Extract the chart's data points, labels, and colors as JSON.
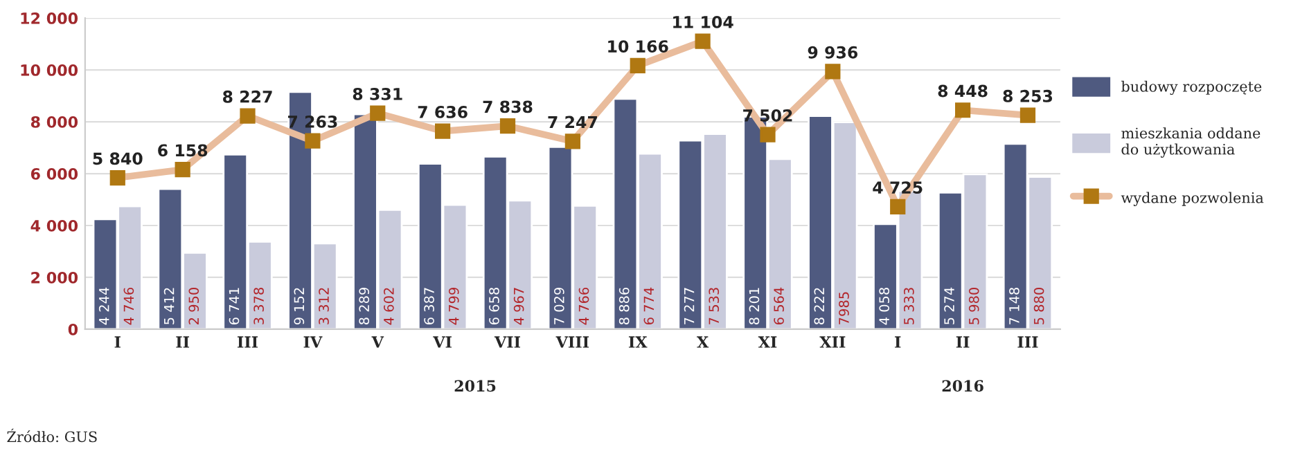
{
  "chart_data": {
    "type": "bar",
    "categories": [
      "I",
      "II",
      "III",
      "IV",
      "V",
      "VI",
      "VII",
      "VIII",
      "IX",
      "X",
      "XI",
      "XII",
      "I",
      "II",
      "III"
    ],
    "series": [
      {
        "name": "budowy rozpoczęte",
        "color": "#4f5a80",
        "values": [
          4244,
          5412,
          6741,
          9152,
          8289,
          6387,
          6658,
          7029,
          8886,
          7277,
          8201,
          8222,
          4058,
          5274,
          7148
        ],
        "value_labels": [
          "4 244",
          "5 412",
          "6 741",
          "9 152",
          "8 289",
          "6 387",
          "6 658",
          "7 029",
          "8 886",
          "7 277",
          "8 201",
          "8 222",
          "4 058",
          "5 274",
          "7 148"
        ]
      },
      {
        "name": "mieszkania oddane do użytkowania",
        "color": "#c9cbdc",
        "values": [
          4746,
          2950,
          3378,
          3312,
          4602,
          4799,
          4967,
          4766,
          6774,
          7533,
          6564,
          7985,
          5333,
          5980,
          5880
        ],
        "value_labels": [
          "4 746",
          "2 950",
          "3 378",
          "3 312",
          "4 602",
          "4 799",
          "4 967",
          "4 766",
          "6 774",
          "7 533",
          "6 564",
          "7985",
          "5 333",
          "5 980",
          "5 880"
        ]
      },
      {
        "name": "wydane pozwolenia",
        "type": "line",
        "color": "#e9bc9c",
        "marker": "square",
        "values": [
          5840,
          6158,
          8227,
          7263,
          8331,
          7636,
          7838,
          7247,
          10166,
          11104,
          7502,
          9936,
          4725,
          8448,
          8253
        ],
        "value_labels": [
          "5 840",
          "6 158",
          "8 227",
          "7 263",
          "8 331",
          "7 636",
          "7 838",
          "7 247",
          "10 166",
          "11 104",
          "7 502",
          "9 936",
          "4 725",
          "8 448",
          "8 253"
        ]
      }
    ],
    "ylim": [
      0,
      12000
    ],
    "yticks": [
      0,
      {
        "value": 2000,
        "label": "2 000"
      },
      {
        "value": 4000,
        "label": "4 000"
      },
      {
        "value": 6000,
        "label": "6 000"
      },
      {
        "value": 8000,
        "label": "8 000"
      },
      {
        "value": 10000,
        "label": "10 000"
      },
      {
        "value": 12000,
        "label": "12 000"
      }
    ],
    "grid": "y",
    "legend": "right",
    "annotations": [
      "2015",
      "2016",
      "Źródło: GUS"
    ]
  }
}
